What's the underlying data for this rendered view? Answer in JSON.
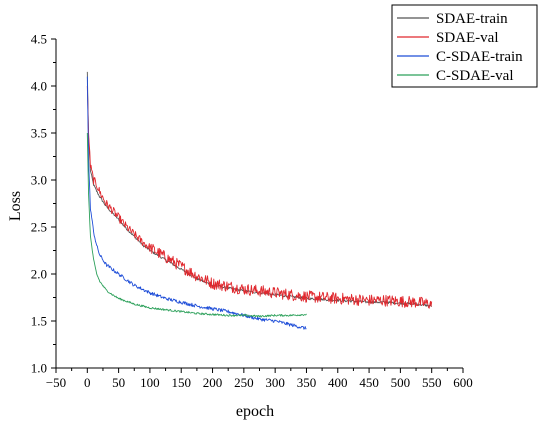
{
  "chart_data": {
    "type": "line",
    "xlabel": "epoch",
    "ylabel": "Loss",
    "xlim": [
      -50,
      600
    ],
    "ylim": [
      1.0,
      4.5
    ],
    "xticks": [
      -50,
      0,
      50,
      100,
      150,
      200,
      250,
      300,
      350,
      400,
      450,
      500,
      550,
      600
    ],
    "yticks": [
      1.0,
      1.5,
      2.0,
      2.5,
      3.0,
      3.5,
      4.0,
      4.5
    ],
    "x_tick_labels": [
      "−50",
      "0",
      "50",
      "100",
      "150",
      "200",
      "250",
      "300",
      "350",
      "400",
      "450",
      "500",
      "550",
      "600"
    ],
    "y_tick_labels": [
      "1.0",
      "1.5",
      "2.0",
      "2.5",
      "3.0",
      "3.5",
      "4.0",
      "4.5"
    ],
    "grid": false,
    "legend_position": "top-right",
    "series": [
      {
        "name": "SDAE-train",
        "color": "#555555",
        "x": [
          0,
          2,
          5,
          10,
          15,
          20,
          30,
          40,
          50,
          60,
          75,
          90,
          100,
          125,
          150,
          175,
          200,
          225,
          250,
          275,
          300,
          325,
          350,
          375,
          400,
          425,
          450,
          475,
          500,
          525,
          550
        ],
        "y": [
          4.15,
          3.45,
          3.1,
          2.95,
          2.88,
          2.82,
          2.72,
          2.65,
          2.58,
          2.5,
          2.4,
          2.3,
          2.25,
          2.15,
          2.05,
          1.95,
          1.88,
          1.85,
          1.82,
          1.8,
          1.78,
          1.76,
          1.74,
          1.73,
          1.72,
          1.71,
          1.7,
          1.7,
          1.69,
          1.68,
          1.66
        ]
      },
      {
        "name": "SDAE-val",
        "color": "#e0282e",
        "x": [
          0,
          2,
          5,
          10,
          15,
          20,
          30,
          40,
          50,
          60,
          75,
          90,
          100,
          125,
          150,
          175,
          200,
          225,
          250,
          275,
          300,
          325,
          350,
          375,
          400,
          425,
          450,
          475,
          500,
          525,
          550
        ],
        "y": [
          4.0,
          3.5,
          3.15,
          3.0,
          2.95,
          2.87,
          2.75,
          2.68,
          2.6,
          2.52,
          2.42,
          2.33,
          2.28,
          2.18,
          2.08,
          1.98,
          1.9,
          1.87,
          1.84,
          1.82,
          1.8,
          1.78,
          1.76,
          1.75,
          1.74,
          1.73,
          1.72,
          1.72,
          1.71,
          1.7,
          1.68
        ]
      },
      {
        "name": "C-SDAE-train",
        "color": "#1f4ed8",
        "x": [
          0,
          2,
          5,
          10,
          15,
          20,
          30,
          40,
          50,
          75,
          100,
          125,
          150,
          175,
          200,
          225,
          250,
          275,
          300,
          325,
          350
        ],
        "y": [
          4.1,
          3.2,
          2.7,
          2.45,
          2.3,
          2.2,
          2.1,
          2.05,
          2.0,
          1.88,
          1.8,
          1.74,
          1.7,
          1.66,
          1.63,
          1.6,
          1.56,
          1.52,
          1.5,
          1.46,
          1.42
        ]
      },
      {
        "name": "C-SDAE-val",
        "color": "#2ca05a",
        "x": [
          0,
          2,
          5,
          10,
          15,
          20,
          30,
          40,
          50,
          75,
          100,
          125,
          150,
          175,
          200,
          225,
          250,
          275,
          300,
          325,
          350
        ],
        "y": [
          3.5,
          2.85,
          2.4,
          2.15,
          2.0,
          1.92,
          1.83,
          1.78,
          1.74,
          1.68,
          1.64,
          1.62,
          1.6,
          1.58,
          1.57,
          1.56,
          1.56,
          1.55,
          1.56,
          1.56,
          1.57
        ]
      }
    ]
  }
}
